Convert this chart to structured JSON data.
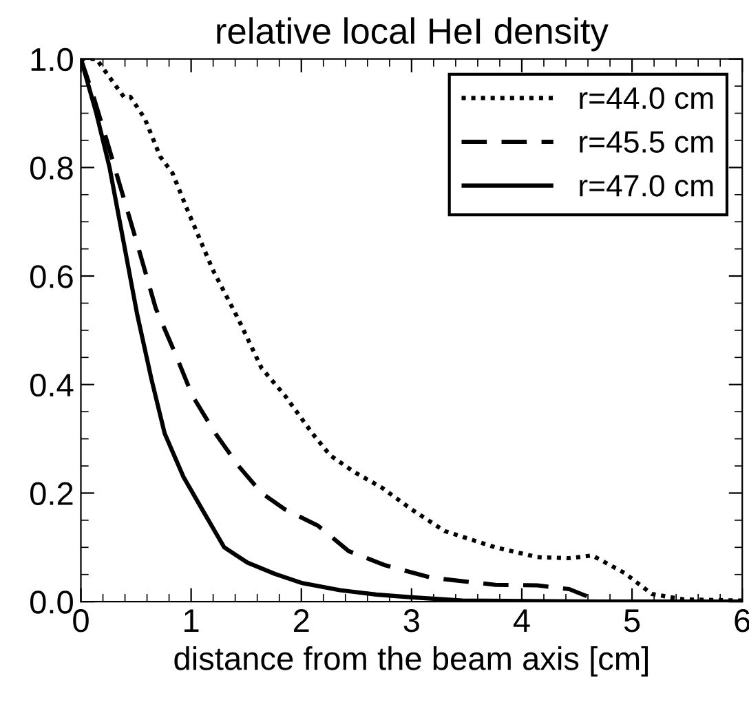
{
  "chart_data": {
    "type": "line",
    "title": "relative local HeI density",
    "xlabel": "distance from the beam axis [cm]",
    "xlim": [
      0,
      6
    ],
    "xticks": [
      0,
      1,
      2,
      3,
      4,
      5,
      6
    ],
    "ylim": [
      0,
      1.0
    ],
    "yticks": [
      {
        "value": 0,
        "label": "0.0"
      },
      {
        "value": 0.2,
        "label": "0.2"
      },
      {
        "value": 0.4,
        "label": "0.4"
      },
      {
        "value": 0.6,
        "label": "0.6"
      },
      {
        "value": 0.8,
        "label": "0.8"
      },
      {
        "value": 1.0,
        "label": "1.0"
      }
    ],
    "grid": false,
    "legend": "top right",
    "series": [
      {
        "name": "r=44.0 cm",
        "color": "#000000",
        "line_style": "dotted",
        "x": [
          0,
          0.14,
          0.39,
          0.45,
          0.58,
          0.72,
          0.83,
          0.97,
          1.2,
          1.43,
          1.64,
          1.85,
          2.1,
          2.26,
          2.47,
          2.73,
          3.0,
          3.3,
          3.76,
          4.14,
          4.43,
          4.64,
          4.93,
          5.18,
          5.47,
          6.0
        ],
        "values": [
          1.0,
          1.0,
          0.93,
          0.93,
          0.89,
          0.82,
          0.79,
          0.72,
          0.61,
          0.52,
          0.43,
          0.38,
          0.31,
          0.27,
          0.24,
          0.21,
          0.17,
          0.13,
          0.1,
          0.082,
          0.08,
          0.085,
          0.053,
          0.014,
          0.004,
          0.002
        ]
      },
      {
        "name": "r=45.5 cm",
        "color": "#000000",
        "line_style": "dashed",
        "x": [
          0,
          0.1,
          0.22,
          0.35,
          0.51,
          0.68,
          0.85,
          1.01,
          1.22,
          1.43,
          1.64,
          1.85,
          2.15,
          2.43,
          2.76,
          3.18,
          3.76,
          4.14,
          4.43,
          4.64,
          4.72,
          5.5,
          6.0
        ],
        "values": [
          1.0,
          0.94,
          0.86,
          0.77,
          0.66,
          0.54,
          0.46,
          0.38,
          0.31,
          0.25,
          0.2,
          0.17,
          0.14,
          0.093,
          0.067,
          0.044,
          0.031,
          0.03,
          0.023,
          0.006,
          0,
          0,
          0
        ]
      },
      {
        "name": "r=47.0 cm",
        "color": "#000000",
        "line_style": "solid",
        "x": [
          0,
          0.14,
          0.26,
          0.39,
          0.51,
          0.64,
          0.76,
          0.93,
          1.1,
          1.3,
          1.51,
          1.76,
          2.01,
          2.35,
          2.68,
          3.0,
          3.46,
          4.7,
          6.0
        ],
        "values": [
          1.0,
          0.9,
          0.8,
          0.66,
          0.53,
          0.41,
          0.31,
          0.23,
          0.17,
          0.1,
          0.072,
          0.051,
          0.034,
          0.021,
          0.013,
          0.008,
          0.002,
          0,
          0
        ]
      }
    ]
  }
}
